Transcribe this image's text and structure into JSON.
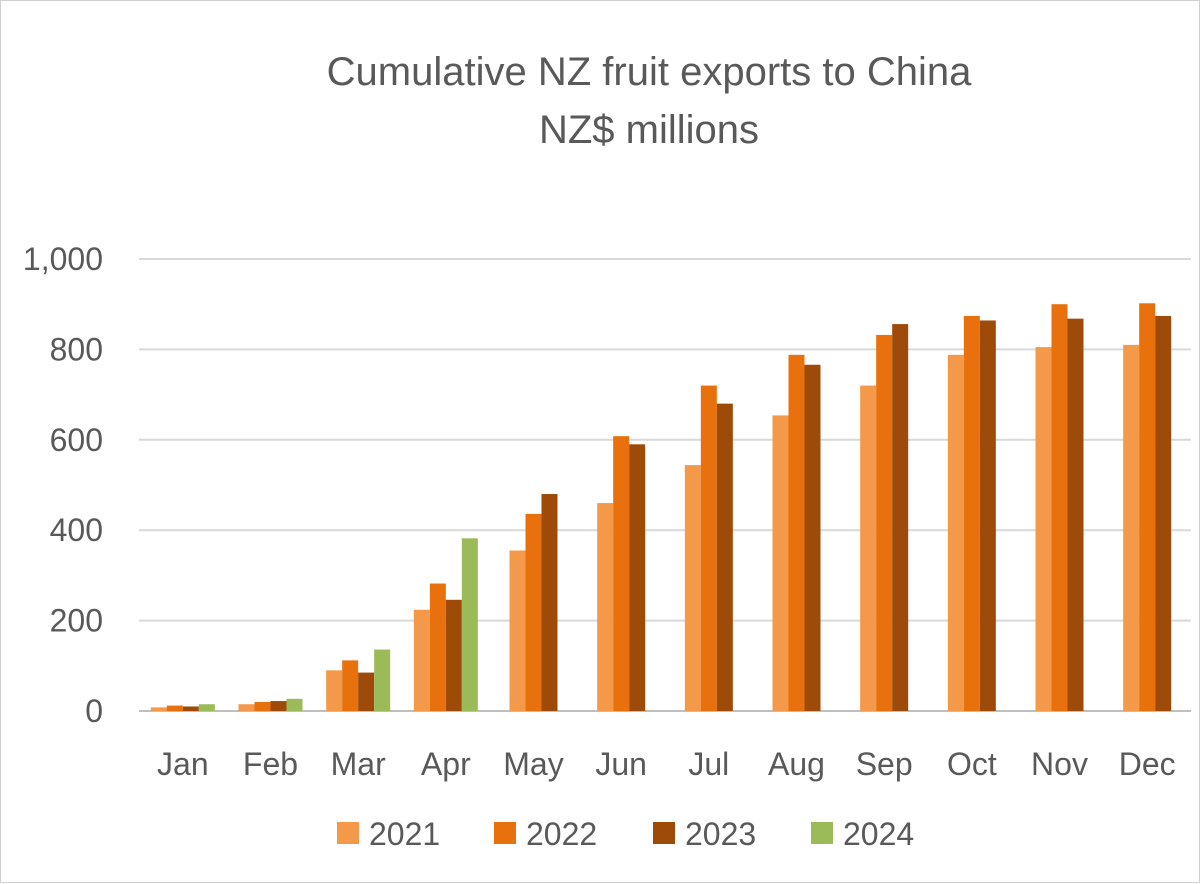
{
  "chart_data": {
    "type": "bar",
    "title": "Cumulative NZ fruit exports to China",
    "subtitle": "NZ$ millions",
    "xlabel": "",
    "ylabel": "",
    "ylim": [
      0,
      1000
    ],
    "yticks": [
      0,
      200,
      400,
      600,
      800,
      1000
    ],
    "ytick_labels": [
      "0",
      "200",
      "400",
      "600",
      "800",
      "1,000"
    ],
    "categories": [
      "Jan",
      "Feb",
      "Mar",
      "Apr",
      "May",
      "Jun",
      "Jul",
      "Aug",
      "Sep",
      "Oct",
      "Nov",
      "Dec"
    ],
    "series": [
      {
        "name": "2021",
        "color": "#F4994A",
        "values": [
          8,
          15,
          90,
          224,
          355,
          460,
          544,
          654,
          720,
          788,
          805,
          810
        ]
      },
      {
        "name": "2022",
        "color": "#E8710E",
        "values": [
          12,
          20,
          112,
          282,
          436,
          608,
          720,
          788,
          832,
          874,
          900,
          902
        ]
      },
      {
        "name": "2023",
        "color": "#9E4A09",
        "values": [
          10,
          22,
          85,
          246,
          480,
          590,
          680,
          766,
          856,
          864,
          868,
          874
        ]
      },
      {
        "name": "2024",
        "color": "#9BBB59",
        "values": [
          15,
          27,
          136,
          382,
          null,
          null,
          null,
          null,
          null,
          null,
          null,
          null
        ]
      }
    ],
    "grid": true,
    "legend": "bottom"
  }
}
